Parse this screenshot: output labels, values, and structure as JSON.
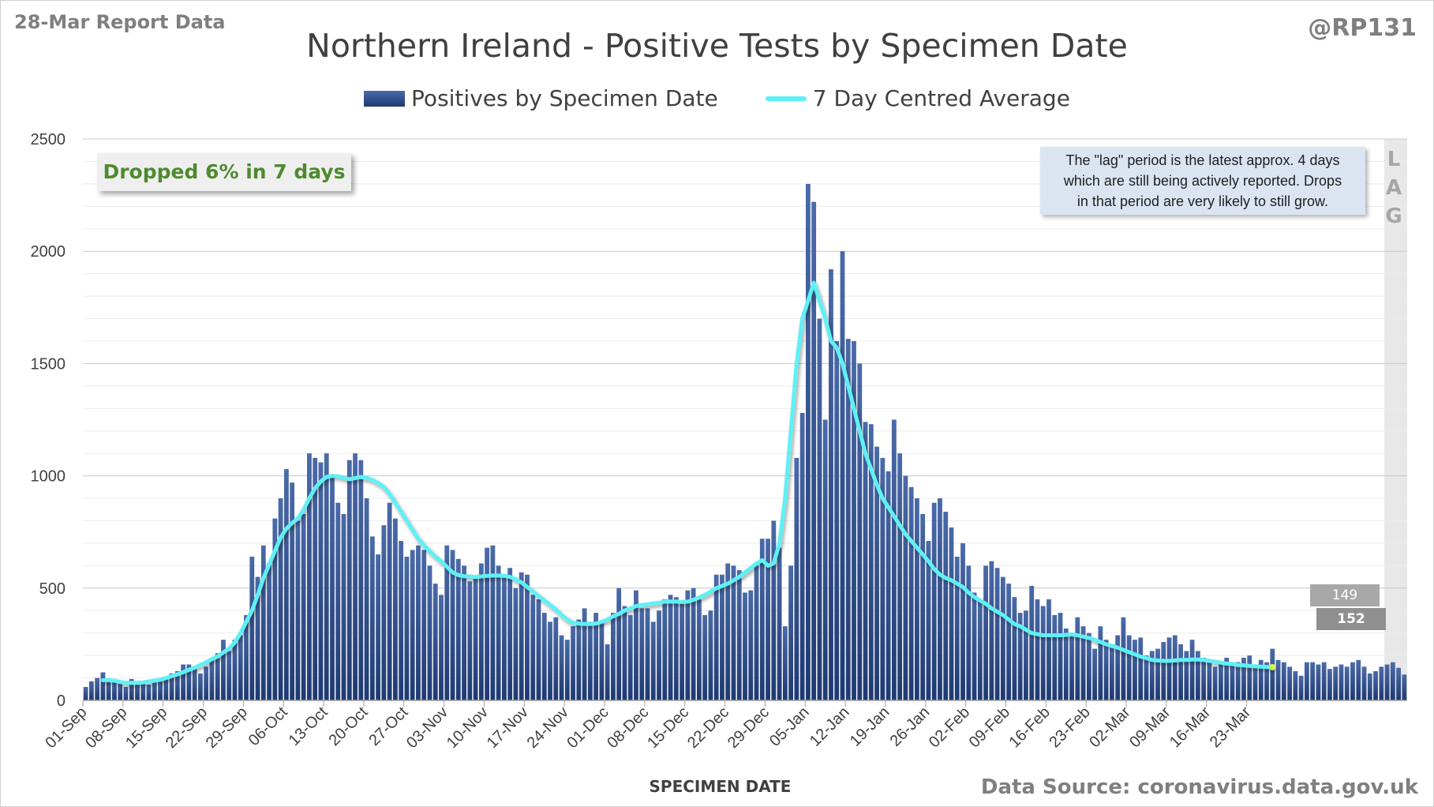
{
  "header": {
    "report_date": "28-Mar Report Data",
    "handle": "@RP131",
    "title": "Northern Ireland - Positive Tests by Specimen Date"
  },
  "legend": {
    "bars_label": "Positives by Specimen Date",
    "line_label": "7 Day Centred Average"
  },
  "annotations": {
    "dropped": "Dropped 6% in 7 days",
    "lag_note_lines": [
      "The \"lag\" period is the latest approx. 4 days",
      "which are still being actively reported. Drops",
      "in that period are very likely to still grow."
    ],
    "lag_letters": [
      "L",
      "A",
      "G"
    ],
    "callout_upper": "149",
    "callout_lower": "152"
  },
  "footer": {
    "xlabel": "SPECIMEN DATE",
    "source": "Data Source: coronavirus.data.gov.uk"
  },
  "colors": {
    "bar_top": "#4a6aa8",
    "bar_bottom": "#1f3a72",
    "average_line": "#5ff0f5",
    "lag_shade": "#e8e8e8",
    "grid": "#dcdcdc",
    "dropped_text": "#4e8a2e"
  },
  "chart_data": {
    "type": "bar",
    "ylim": [
      0,
      2500
    ],
    "yticks": [
      0,
      500,
      1000,
      1500,
      2000,
      2500
    ],
    "xlabel": "SPECIMEN DATE",
    "xtick_labels": [
      "01-Sep",
      "08-Sep",
      "15-Sep",
      "22-Sep",
      "29-Sep",
      "06-Oct",
      "13-Oct",
      "20-Oct",
      "27-Oct",
      "03-Nov",
      "10-Nov",
      "17-Nov",
      "24-Nov",
      "01-Dec",
      "08-Dec",
      "15-Dec",
      "22-Dec",
      "29-Dec",
      "05-Jan",
      "12-Jan",
      "19-Jan",
      "26-Jan",
      "02-Feb",
      "09-Feb",
      "16-Feb",
      "23-Feb",
      "02-Mar",
      "09-Mar",
      "16-Mar",
      "23-Mar"
    ],
    "lag_days": 4,
    "x_start": "01-Sep",
    "x_end": "27-Mar",
    "series": [
      {
        "name": "Positives by Specimen Date",
        "kind": "bar",
        "values": [
          60,
          85,
          100,
          125,
          95,
          90,
          80,
          60,
          95,
          85,
          75,
          70,
          85,
          90,
          105,
          120,
          130,
          160,
          160,
          140,
          120,
          150,
          180,
          210,
          270,
          220,
          270,
          290,
          380,
          640,
          550,
          690,
          610,
          810,
          900,
          1030,
          970,
          800,
          830,
          1100,
          1080,
          1060,
          1100,
          1000,
          880,
          830,
          1070,
          1100,
          1070,
          900,
          730,
          650,
          780,
          880,
          810,
          710,
          640,
          670,
          690,
          670,
          600,
          520,
          470,
          690,
          670,
          630,
          600,
          530,
          550,
          610,
          680,
          690,
          600,
          550,
          590,
          500,
          570,
          560,
          470,
          450,
          390,
          350,
          370,
          290,
          270,
          330,
          360,
          410,
          350,
          390,
          350,
          250,
          390,
          500,
          420,
          380,
          490,
          410,
          410,
          350,
          400,
          450,
          470,
          460,
          440,
          490,
          500,
          450,
          380,
          400,
          560,
          560,
          610,
          600,
          580,
          480,
          490,
          600,
          720,
          720,
          800,
          680,
          330,
          600,
          1080,
          1280,
          2300,
          2220,
          1700,
          1250,
          1920,
          1600,
          2000,
          1610,
          1600,
          1500,
          1240,
          1230,
          1130,
          1080,
          1020,
          1250,
          1100,
          1000,
          950,
          900,
          830,
          710,
          880,
          900,
          840,
          770,
          640,
          700,
          600,
          480,
          440,
          600,
          620,
          590,
          550,
          520,
          460,
          390,
          400,
          510,
          450,
          420,
          450,
          380,
          390,
          320,
          300,
          370,
          330,
          300,
          230,
          330,
          270,
          250,
          290,
          370,
          290,
          270,
          280,
          200,
          220,
          230,
          260,
          280,
          290,
          250,
          220,
          270,
          220,
          190,
          170,
          150,
          170,
          190,
          170,
          170,
          190,
          200,
          150,
          180,
          170,
          230,
          180,
          170,
          150,
          130,
          110,
          170,
          170,
          160,
          170,
          140,
          150,
          160,
          150,
          170,
          180,
          150,
          120,
          130,
          150,
          160,
          170,
          145,
          115
        ],
        "notes": "Last 4 values fall in the lag period"
      },
      {
        "name": "7 Day Centred Average",
        "kind": "line",
        "start_index": 3,
        "values": [
          90,
          90,
          88,
          82,
          78,
          78,
          78,
          80,
          84,
          88,
          92,
          100,
          108,
          116,
          126,
          136,
          146,
          158,
          170,
          184,
          196,
          214,
          230,
          258,
          300,
          350,
          400,
          470,
          545,
          605,
          665,
          725,
          765,
          790,
          810,
          850,
          900,
          945,
          975,
          995,
          1000,
          998,
          992,
          985,
          990,
          995,
          990,
          982,
          968,
          950,
          920,
          880,
          840,
          800,
          760,
          720,
          690,
          665,
          640,
          620,
          595,
          570,
          558,
          553,
          552,
          550,
          552,
          555,
          556,
          556,
          555,
          550,
          540,
          525,
          505,
          485,
          465,
          445,
          425,
          405,
          380,
          360,
          345,
          342,
          340,
          340,
          342,
          350,
          360,
          375,
          385,
          400,
          410,
          420,
          425,
          428,
          432,
          435,
          440,
          440,
          440,
          438,
          440,
          448,
          458,
          470,
          485,
          500,
          510,
          520,
          535,
          550,
          570,
          590,
          610,
          625,
          600,
          610,
          700,
          900,
          1200,
          1500,
          1700,
          1780,
          1860,
          1780,
          1700,
          1600,
          1570,
          1500,
          1400,
          1300,
          1200,
          1100,
          1030,
          960,
          900,
          860,
          820,
          780,
          740,
          710,
          680,
          650,
          620,
          585,
          560,
          545,
          535,
          520,
          505,
          480,
          460,
          445,
          430,
          410,
          395,
          380,
          360,
          340,
          330,
          315,
          300,
          295,
          290,
          290,
          290,
          290,
          292,
          294,
          290,
          284,
          278,
          270,
          260,
          250,
          242,
          235,
          225,
          215,
          205,
          195,
          188,
          180,
          178,
          176,
          176,
          178,
          180,
          180,
          182,
          182,
          180,
          176,
          172,
          168,
          164,
          162,
          158,
          156,
          154,
          152,
          150,
          149,
          148
        ]
      }
    ]
  }
}
